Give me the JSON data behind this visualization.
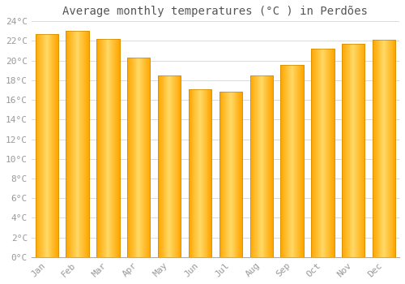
{
  "title": "Average monthly temperatures (°C ) in Perdões",
  "months": [
    "Jan",
    "Feb",
    "Mar",
    "Apr",
    "May",
    "Jun",
    "Jul",
    "Aug",
    "Sep",
    "Oct",
    "Nov",
    "Dec"
  ],
  "values": [
    22.7,
    23.0,
    22.2,
    20.3,
    18.5,
    17.1,
    16.8,
    18.5,
    19.6,
    21.2,
    21.7,
    22.1
  ],
  "bar_color_center": "#FFD966",
  "bar_color_edge": "#FFA500",
  "bar_gradient_left": "#FFB700",
  "bar_gradient_right": "#FFA000",
  "background_color": "#FFFFFF",
  "grid_color": "#CCCCCC",
  "text_color": "#999999",
  "ylim": [
    0,
    24
  ],
  "yticks": [
    0,
    2,
    4,
    6,
    8,
    10,
    12,
    14,
    16,
    18,
    20,
    22,
    24
  ],
  "ytick_labels": [
    "0°C",
    "2°C",
    "4°C",
    "6°C",
    "8°C",
    "10°C",
    "12°C",
    "14°C",
    "16°C",
    "18°C",
    "20°C",
    "22°C",
    "24°C"
  ],
  "title_fontsize": 10,
  "tick_fontsize": 8
}
